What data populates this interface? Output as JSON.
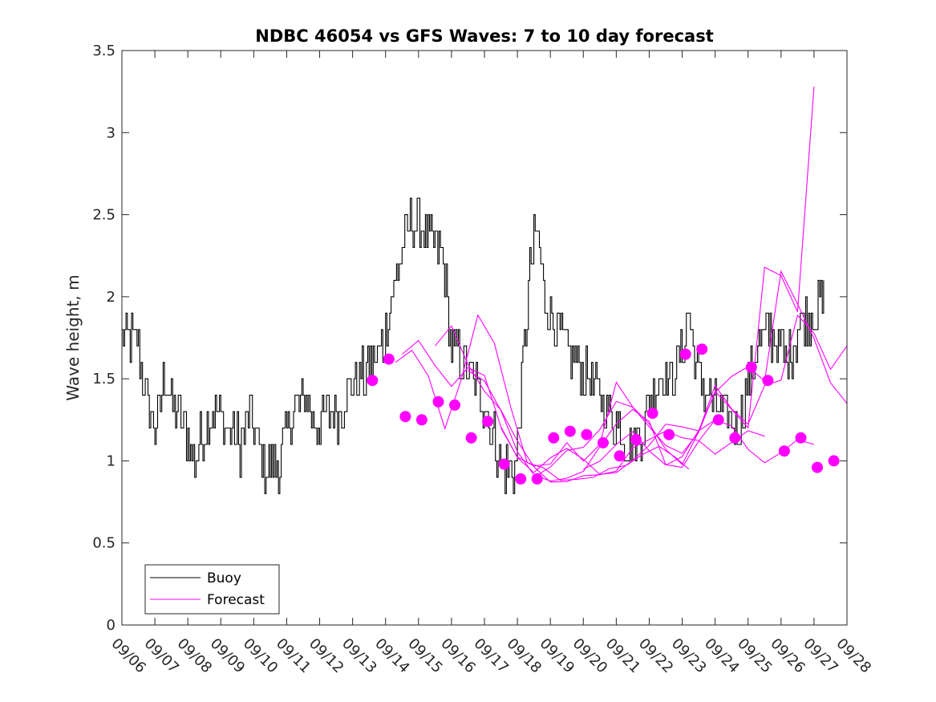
{
  "chart_data": {
    "type": "line",
    "title": "NDBC 46054 vs GFS Waves: 7 to 10 day forecast",
    "xlabel": "",
    "ylabel": "Wave height, m",
    "xlim": [
      0,
      22
    ],
    "ylim": [
      0,
      3.5
    ],
    "yticks": [
      0,
      0.5,
      1,
      1.5,
      2,
      2.5,
      3,
      3.5
    ],
    "ytick_labels": [
      "0",
      "0.5",
      "1",
      "1.5",
      "2",
      "2.5",
      "3",
      "3.5"
    ],
    "xtick_labels": [
      "09/06",
      "09/07",
      "09/08",
      "09/09",
      "09/10",
      "09/11",
      "09/12",
      "09/13",
      "09/14",
      "09/15",
      "09/16",
      "09/17",
      "09/18",
      "09/19",
      "09/20",
      "09/21",
      "09/22",
      "09/23",
      "09/24",
      "09/25",
      "09/26",
      "09/27",
      "09/28"
    ],
    "colors": {
      "buoy": "#000000",
      "forecast": "#ff00ff"
    },
    "legend": {
      "position": "bottom-left",
      "entries": [
        "Buoy",
        "Forecast"
      ]
    },
    "buoy": {
      "name": "Buoy",
      "x": [
        0,
        0.5,
        0.8,
        1,
        1.3,
        1.6,
        1.9,
        2.2,
        2.5,
        2.8,
        3.2,
        3.6,
        3.9,
        4.2,
        4.5,
        4.8,
        5.2,
        5.6,
        5.9,
        6.2,
        6.6,
        7,
        7.3,
        7.6,
        7.9,
        8.2,
        8.5,
        8.8,
        9.1,
        9.4,
        9.7,
        10,
        10.3,
        10.6,
        10.9,
        11.2,
        11.5,
        11.7,
        11.9,
        12,
        12.2,
        12.4,
        12.6,
        12.8,
        13,
        13.2,
        13.4,
        13.6,
        13.8,
        14,
        14.2,
        14.5,
        14.8,
        15.1,
        15.4,
        15.7,
        16,
        16.3,
        16.6,
        16.9,
        17.2,
        17.5,
        17.8,
        18.1,
        18.4,
        18.7,
        19,
        19.3,
        19.6,
        19.9,
        20.2,
        20.5,
        20.8,
        21.1,
        21.3
      ],
      "y": [
        1.8,
        1.7,
        1.3,
        1.2,
        1.5,
        1.3,
        1.2,
        1.0,
        1.2,
        1.3,
        1.2,
        1.1,
        1.3,
        1.0,
        0.95,
        1.0,
        1.3,
        1.4,
        1.2,
        1.3,
        1.3,
        1.5,
        1.5,
        1.6,
        1.7,
        2.0,
        2.3,
        2.5,
        2.4,
        2.3,
        2.3,
        1.7,
        1.6,
        1.5,
        1.4,
        1.2,
        1.0,
        0.95,
        0.9,
        1.1,
        1.7,
        2.2,
        2.4,
        2.0,
        1.9,
        1.8,
        1.7,
        1.6,
        1.6,
        1.5,
        1.5,
        1.4,
        1.3,
        1.2,
        1.1,
        1.1,
        1.4,
        1.5,
        1.5,
        1.6,
        1.9,
        1.5,
        1.4,
        1.3,
        1.3,
        1.2,
        1.5,
        1.7,
        1.8,
        1.7,
        1.6,
        1.8,
        1.9,
        1.9,
        2.0
      ]
    },
    "forecast": {
      "name": "Forecast",
      "markers": {
        "x": [
          7.6,
          8.1,
          8.6,
          9.1,
          9.6,
          10.1,
          10.6,
          11.1,
          11.6,
          12.1,
          12.6,
          13.1,
          13.6,
          14.1,
          14.6,
          15.1,
          15.6,
          16.1,
          16.6,
          17.1,
          17.6,
          18.1,
          18.6,
          19.1,
          19.6,
          20.1,
          20.6,
          21.1,
          21.6
        ],
        "y": [
          1.49,
          1.62,
          1.27,
          1.25,
          1.36,
          1.34,
          1.14,
          1.24,
          0.98,
          0.89,
          0.89,
          1.14,
          1.18,
          1.16,
          1.11,
          1.03,
          1.13,
          1.29,
          1.16,
          1.65,
          1.68,
          1.25,
          1.14,
          1.57,
          1.49,
          1.06,
          1.14,
          0.96,
          1.0
        ]
      },
      "runs": [
        {
          "x": [
            8.3,
            8.8,
            9.3,
            9.8,
            10.3,
            10.8,
            11.3,
            11.8,
            12.3,
            12.8,
            13.3,
            13.8,
            14.3,
            14.8,
            15.3,
            15.8,
            16.3,
            16.8,
            17.2
          ],
          "y": [
            1.6,
            1.7,
            1.5,
            1.2,
            1.5,
            1.9,
            1.7,
            1.3,
            1.0,
            0.95,
            0.9,
            0.88,
            0.9,
            0.95,
            1.0,
            1.05,
            1.1,
            1.0,
            0.95
          ]
        },
        {
          "x": [
            8.5,
            9,
            9.5,
            10,
            10.5,
            11,
            11.5,
            12,
            12.5,
            13,
            13.5,
            14,
            14.5,
            15,
            15.5,
            16,
            16.5,
            17,
            17.5,
            18
          ],
          "y": [
            1.65,
            1.75,
            1.6,
            1.45,
            1.55,
            1.5,
            1.2,
            1.0,
            0.95,
            1.0,
            1.1,
            1.0,
            0.9,
            0.95,
            1.0,
            1.1,
            1.2,
            1.2,
            1.2,
            1.25
          ]
        },
        {
          "x": [
            9.5,
            10,
            10.5,
            11,
            11.5,
            12,
            12.5,
            13,
            13.5,
            14,
            14.5,
            15,
            15.5,
            16,
            16.5,
            17,
            17.5,
            18,
            18.5,
            19,
            19.5
          ],
          "y": [
            1.7,
            1.8,
            1.6,
            1.4,
            1.3,
            1.1,
            0.95,
            0.9,
            0.85,
            0.88,
            0.9,
            0.95,
            1.1,
            1.15,
            1.2,
            1.15,
            1.1,
            1.05,
            1.1,
            1.2,
            1.15
          ]
        },
        {
          "x": [
            10.5,
            11,
            11.5,
            12,
            12.5,
            13,
            13.5,
            14,
            14.5,
            15,
            15.5,
            16,
            16.5,
            17,
            17.5,
            18,
            18.5,
            19,
            19.5,
            20,
            20.5,
            21
          ],
          "y": [
            1.55,
            1.5,
            1.3,
            1.05,
            0.92,
            0.88,
            0.9,
            0.95,
            1.1,
            1.2,
            1.3,
            1.25,
            1.0,
            0.95,
            1.1,
            1.25,
            1.2,
            1.1,
            1.0,
            1.05,
            1.1,
            1.1
          ]
        },
        {
          "x": [
            11.5,
            12,
            12.5,
            13,
            13.5,
            14,
            14.5,
            15,
            15.5,
            16,
            16.5,
            17,
            17.5,
            18,
            18.5,
            19,
            19.5,
            20,
            20.5,
            21,
            21.5,
            22
          ],
          "y": [
            1.2,
            1.0,
            0.95,
            1.0,
            1.1,
            1.0,
            1.1,
            1.45,
            1.3,
            1.2,
            1.1,
            0.95,
            1.2,
            1.45,
            1.3,
            1.2,
            1.45,
            1.5,
            1.9,
            1.75,
            1.55,
            1.7
          ]
        },
        {
          "x": [
            12.5,
            13,
            13.5,
            14,
            14.5,
            15,
            15.5,
            16,
            16.5,
            17,
            17.5,
            18,
            18.5,
            19,
            19.5,
            20,
            20.5,
            21
          ],
          "y": [
            0.9,
            0.95,
            1.05,
            1.1,
            1.2,
            1.35,
            1.3,
            1.2,
            1.1,
            1.05,
            1.15,
            1.4,
            1.3,
            1.2,
            2.2,
            2.1,
            1.9,
            3.28
          ]
        },
        {
          "x": [
            14,
            14.5,
            15,
            15.5,
            16,
            16.5,
            17,
            17.5,
            18,
            18.5,
            19,
            19.5,
            20,
            20.5,
            21,
            21.5,
            22
          ],
          "y": [
            0.95,
            1.0,
            1.1,
            1.2,
            1.05,
            0.95,
            1.0,
            1.2,
            1.4,
            1.5,
            1.6,
            1.5,
            2.15,
            1.95,
            1.75,
            1.5,
            1.35
          ]
        }
      ]
    }
  }
}
